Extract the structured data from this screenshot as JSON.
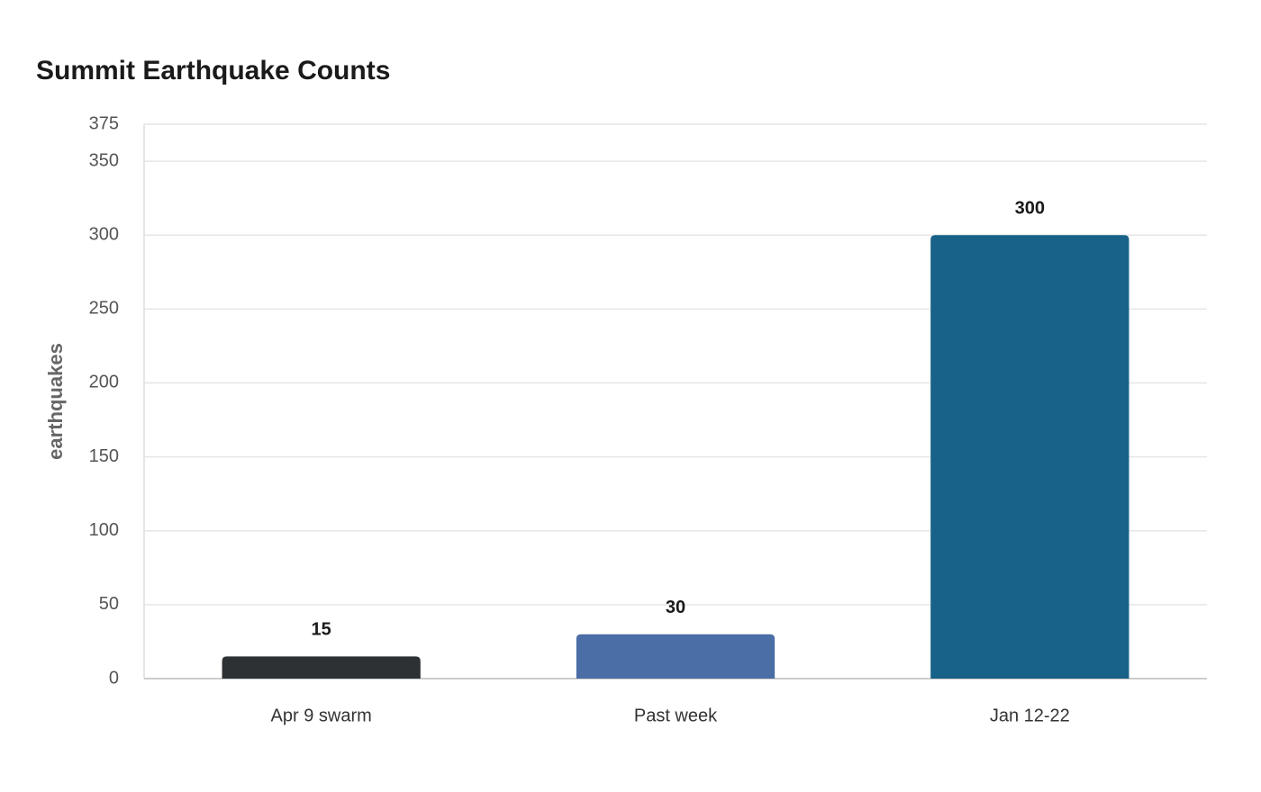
{
  "chart_data": {
    "type": "bar",
    "title": "Summit Earthquake Counts",
    "y_label": "earthquakes",
    "categories": [
      "Apr 9 swarm",
      "Past week",
      "Jan 12-22"
    ],
    "values": [
      15,
      30,
      300
    ],
    "colors": [
      "#2d3134",
      "#4a6ea5",
      "#186188"
    ],
    "ylim": [
      0,
      375
    ],
    "yticks": [
      0,
      50,
      100,
      150,
      200,
      250,
      300,
      350,
      375
    ],
    "grid": true
  }
}
